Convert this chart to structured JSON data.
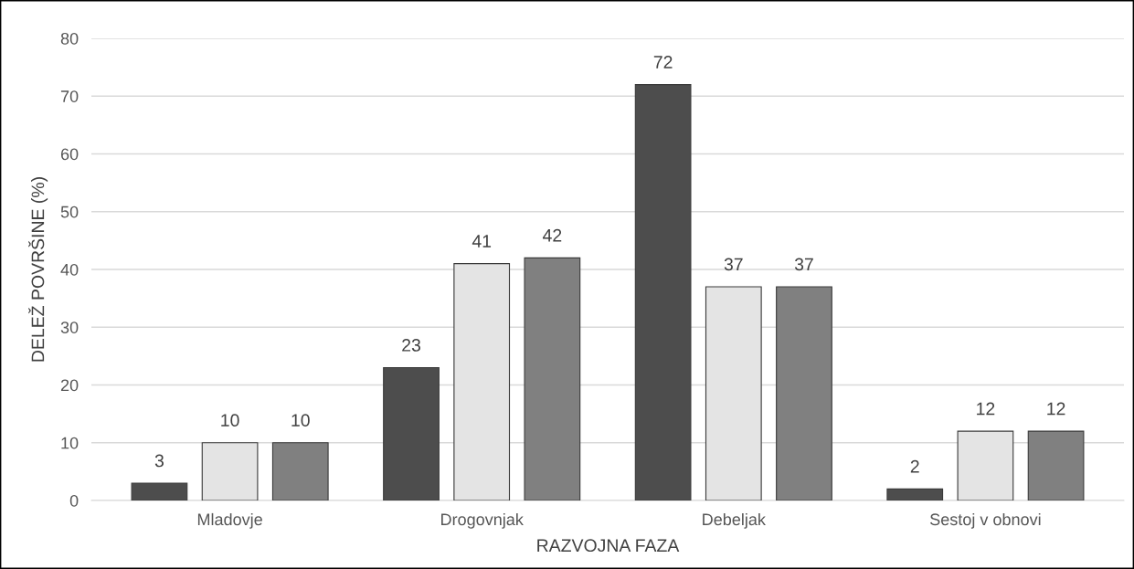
{
  "chart_data": {
    "type": "bar",
    "xlabel": "RAZVOJNA FAZA",
    "ylabel": "DELEŽ POVRŠINE (%)",
    "categories": [
      "Mladovje",
      "Drogovnjak",
      "Debeljak",
      "Sestoj v obnovi"
    ],
    "series": [
      {
        "color": "#4d4d4d",
        "values": [
          3,
          23,
          72,
          2
        ]
      },
      {
        "color": "#e4e4e4",
        "values": [
          10,
          41,
          37,
          12
        ]
      },
      {
        "color": "#808080",
        "values": [
          10,
          42,
          37,
          12
        ]
      }
    ],
    "ylim": [
      0,
      80
    ],
    "yticks": [
      0,
      10,
      20,
      30,
      40,
      50,
      60,
      70,
      80
    ],
    "grid": "y",
    "legend": false,
    "data_labels": true
  }
}
